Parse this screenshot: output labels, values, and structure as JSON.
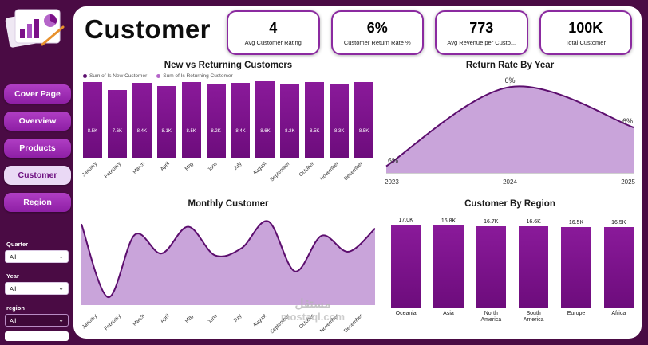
{
  "header": {
    "title": "Customer",
    "kpis": [
      {
        "value": "4",
        "label": "Avg Customer Rating"
      },
      {
        "value": "6%",
        "label": "Customer Return Rate %"
      },
      {
        "value": "773",
        "label": "Avg Revenue per Custo..."
      },
      {
        "value": "100K",
        "label": "Total Customer"
      }
    ]
  },
  "sidebar": {
    "items": [
      {
        "label": "Cover Page",
        "active": false
      },
      {
        "label": "Overview",
        "active": false
      },
      {
        "label": "Products",
        "active": false
      },
      {
        "label": "Customer",
        "active": true
      },
      {
        "label": "Region",
        "active": false
      }
    ],
    "filters": [
      {
        "label": "Quarter",
        "value": "All"
      },
      {
        "label": "Year",
        "value": "All"
      },
      {
        "label": "region",
        "value": "All"
      }
    ]
  },
  "watermark": {
    "line1": "مستقل",
    "line2": "mostaql.com"
  },
  "colors": {
    "frame": "#4a0b44",
    "bar": "#760e85",
    "area_fill": "#c9a4da",
    "area_stroke": "#5c0e6e",
    "card_border": "#8b2aa0",
    "sidebar_button": "#a32cb7",
    "sidebar_active_bg": "#ead9f5",
    "legend_new": "#5c0e6e",
    "legend_returning": "#b565c9"
  },
  "chart_data": [
    {
      "id": "new-vs-returning",
      "type": "bar",
      "title": "New vs Returning Customers",
      "legend": [
        {
          "label": "Sum of Is New Customer",
          "color": "#5c0e6e"
        },
        {
          "label": "Sum of Is Returning Customer",
          "color": "#b565c9"
        }
      ],
      "categories": [
        "January",
        "February",
        "March",
        "April",
        "May",
        "June",
        "July",
        "August",
        "September",
        "October",
        "November",
        "December"
      ],
      "values": [
        8.5,
        7.6,
        8.4,
        8.1,
        8.5,
        8.2,
        8.4,
        8.6,
        8.2,
        8.5,
        8.3,
        8.5
      ],
      "labels": [
        "8.5K",
        "7.6K",
        "8.4K",
        "8.1K",
        "8.5K",
        "8.2K",
        "8.4K",
        "8.6K",
        "8.2K",
        "8.5K",
        "8.3K",
        "8.5K"
      ],
      "ylim": [
        0,
        9
      ]
    },
    {
      "id": "return-rate-by-year",
      "type": "area",
      "title": "Return Rate By Year",
      "x": [
        "2023",
        "2024",
        "2025"
      ],
      "point_labels": [
        "6%",
        "6%",
        "6%"
      ],
      "relative_heights": [
        0.05,
        0.97,
        0.5
      ]
    },
    {
      "id": "monthly-customer",
      "type": "area",
      "title": "Monthly Customer",
      "categories": [
        "January",
        "February",
        "March",
        "April",
        "May",
        "June",
        "July",
        "August",
        "September",
        "October",
        "November",
        "December"
      ],
      "relative_values": [
        0.9,
        0.08,
        0.78,
        0.57,
        0.87,
        0.55,
        0.63,
        0.93,
        0.37,
        0.77,
        0.59,
        0.85
      ]
    },
    {
      "id": "customer-by-region",
      "type": "bar",
      "title": "Customer By Region",
      "categories": [
        "Oceania",
        "Asia",
        "North America",
        "South America",
        "Europe",
        "Africa"
      ],
      "values": [
        17.0,
        16.8,
        16.7,
        16.6,
        16.5,
        16.5
      ],
      "labels": [
        "17.0K",
        "16.8K",
        "16.7K",
        "16.6K",
        "16.5K",
        "16.5K"
      ]
    }
  ]
}
